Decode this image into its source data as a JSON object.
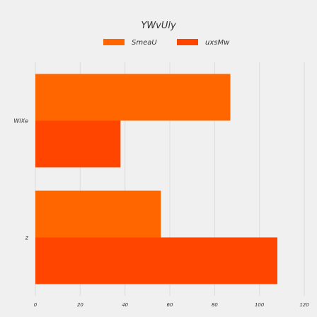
{
  "chart_data": {
    "type": "bar",
    "orientation": "horizontal",
    "title": "YWvUly",
    "xlabel": "",
    "ylabel": "",
    "categories": [
      "WIXe",
      "z"
    ],
    "series": [
      {
        "name": "SmeaU",
        "values": [
          87,
          56
        ],
        "color": "#ff6600"
      },
      {
        "name": "uxsMw",
        "values": [
          38,
          108
        ],
        "color": "#ff4500"
      }
    ],
    "xlim": [
      0,
      120
    ],
    "xticks": [
      0,
      20,
      40,
      60,
      80,
      100,
      120
    ],
    "grid": true,
    "legend_position": "top"
  }
}
